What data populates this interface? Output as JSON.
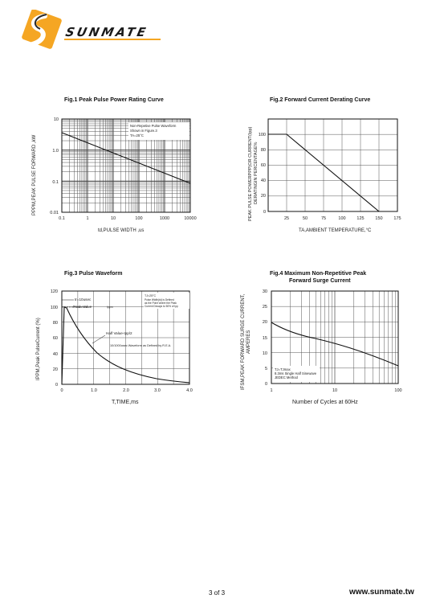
{
  "brand": {
    "name": "SUNMATE",
    "logo_orange": "#F5A623",
    "logo_dark": "#2A2A2A"
  },
  "footer": {
    "page": "3 of 3",
    "url": "www.sunmate.tw"
  },
  "fig1": {
    "title": "Fig.1  Peak Pulse Power Rating Curve",
    "ylabel": "PPPM,PEAK PULSE FORWARD ,kW",
    "xlabel": "td,PULSE WIDTH ,us",
    "yticks": [
      "10",
      "1.0",
      "0.1",
      "0.01"
    ],
    "xticks": [
      "0.1",
      "1",
      "10",
      "100",
      "1000",
      "10000"
    ],
    "note1": "Non-Repetive  Pulse Waveform",
    "note2": "Shown in Figure.3",
    "note3": "TA=25°C"
  },
  "fig2": {
    "title": "Fig.2  Forward Current Derating Curve",
    "ylabel1": "PEAK PULSE POWERPPP)OR CURRENT(Ipp)",
    "ylabel2": "DERATINGIN PERCENTAGE%",
    "xlabel": "TA,AMBIENT TEMPERATURE,°C",
    "yticks": [
      "100",
      "80",
      "60",
      "40",
      "20",
      "0"
    ],
    "xticks": [
      "25",
      "50",
      "75",
      "100",
      "125",
      "150",
      "175"
    ]
  },
  "fig3": {
    "title": "Fig.3  Pulse Waveform",
    "ylabel": "IPPM,Peak PulseCurrent (%)",
    "xlabel": "T,TIME,ms",
    "yticks": [
      "120",
      "100",
      "80",
      "60",
      "40",
      "20",
      "0"
    ],
    "xticks": [
      "0",
      "1.0",
      "2.0",
      "3.0",
      "4.0"
    ],
    "tr_label": "tr=10usec",
    "peak_label": "Peak  Value",
    "peak_sub": "Ippm",
    "half_label": "Half  Value-Ipp/2",
    "wave_label": "10/1000usec Waveform as Defined by R.E.A.",
    "note1": "TJ=25°C",
    "note2": "Pulse  Width(td) is Defined",
    "note3": "as the Point  where the Peak",
    "note4": "Current  Decays to 50% of Ipp"
  },
  "fig4": {
    "title1": "Fig.4  Maximum Non-Repetitive Peak",
    "title2": "Forward Surge Current",
    "ylabel1": "IFSM,PEAK FORWARD SURGE CURRENT,",
    "ylabel2": "AMPERES",
    "xlabel": "Number of Cycles at 60Hz",
    "yticks": [
      "30",
      "25",
      "20",
      "15",
      "10",
      "5",
      "0"
    ],
    "xticks": [
      "1",
      "10",
      "100"
    ],
    "note1": "TJ=TJmax",
    "note2": "8.3ms Single Half  Sinewave",
    "note3": "JEDEC Method"
  }
}
